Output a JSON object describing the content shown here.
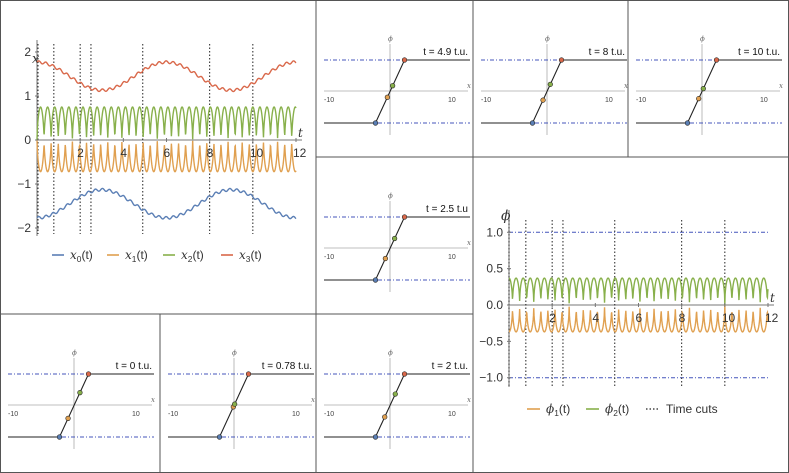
{
  "chart_data": [
    {
      "type": "line",
      "panel": "main-x",
      "ylabel": "x",
      "xlabel": "t",
      "xlim": [
        0,
        12
      ],
      "ylim": [
        -2,
        2
      ],
      "x_ticks": [
        "2",
        "4",
        "6",
        "8",
        "10",
        "12"
      ],
      "y_ticks": [
        "-2",
        "-1",
        "0",
        "1",
        "2"
      ],
      "time_cuts": [
        0,
        0.78,
        2,
        2.5,
        4.9,
        8,
        10
      ],
      "series": [
        {
          "name": "x0(t)",
          "sym": "x",
          "sub": "0",
          "color": "#5b7fb5",
          "mean": -1.45,
          "amp": 0.32,
          "period": 6.0,
          "osc": 0.0
        },
        {
          "name": "x1(t)",
          "sym": "x",
          "sub": "1",
          "color": "#e0a050",
          "mean": -0.05,
          "amp": 0.0,
          "period": 6.0,
          "osc": 0.72
        },
        {
          "name": "x2(t)",
          "sym": "x",
          "sub": "2",
          "color": "#88b04b",
          "mean": 0.05,
          "amp": 0.0,
          "period": 6.0,
          "osc": 0.72
        },
        {
          "name": "x3(t)",
          "sym": "x",
          "sub": "3",
          "color": "#d9684a",
          "mean": 1.45,
          "amp": 0.32,
          "period": 6.0,
          "osc": 0.0
        }
      ]
    },
    {
      "type": "line",
      "panel": "main-phi",
      "ylabel": "ϕ",
      "xlabel": "t",
      "xlim": [
        0,
        12
      ],
      "ylim": [
        -1.1,
        1.1
      ],
      "x_ticks": [
        "2",
        "4",
        "6",
        "8",
        "10",
        "12"
      ],
      "y_ticks": [
        "-1.0",
        "-0.5",
        "0.0",
        "0.5",
        "1.0"
      ],
      "time_cuts": [
        0,
        0.78,
        2,
        2.5,
        4.9,
        8,
        10
      ],
      "series": [
        {
          "name": "ϕ1(t)",
          "sym": "ϕ",
          "sub": "1",
          "color": "#e0a050",
          "sign": -1
        },
        {
          "name": "ϕ2(t)",
          "sym": "ϕ",
          "sub": "2",
          "color": "#88b04b",
          "sign": 1
        }
      ],
      "legend_extra": "Time cuts"
    },
    {
      "type": "line",
      "panel": "snapshots",
      "ylabel": "ϕ",
      "xlabel": "x",
      "xlim": [
        -10,
        10
      ],
      "x_ticks": [
        "-10",
        "10"
      ],
      "snapshots": [
        {
          "label": "t = 4.9 t.u.",
          "markers": [
            -2.2,
            -0.4,
            0.4,
            2.2
          ]
        },
        {
          "label": "t = 8 t.u.",
          "markers": [
            -2.2,
            -0.6,
            0.5,
            2.2
          ]
        },
        {
          "label": "t = 10 t.u.",
          "markers": [
            -2.2,
            -0.5,
            0.2,
            2.2
          ]
        },
        {
          "label": "t = 2.5 t.u",
          "markers": [
            -2.2,
            -0.7,
            0.7,
            2.2
          ]
        },
        {
          "label": "t = 0 t.u.",
          "markers": [
            -2.2,
            -0.9,
            0.9,
            2.2
          ]
        },
        {
          "label": "t = 0.78 t.u.",
          "markers": [
            -2.2,
            -0.1,
            0.1,
            2.2
          ]
        },
        {
          "label": "t = 2 t.u.",
          "markers": [
            -2.2,
            -0.8,
            0.8,
            2.2
          ]
        }
      ]
    }
  ]
}
